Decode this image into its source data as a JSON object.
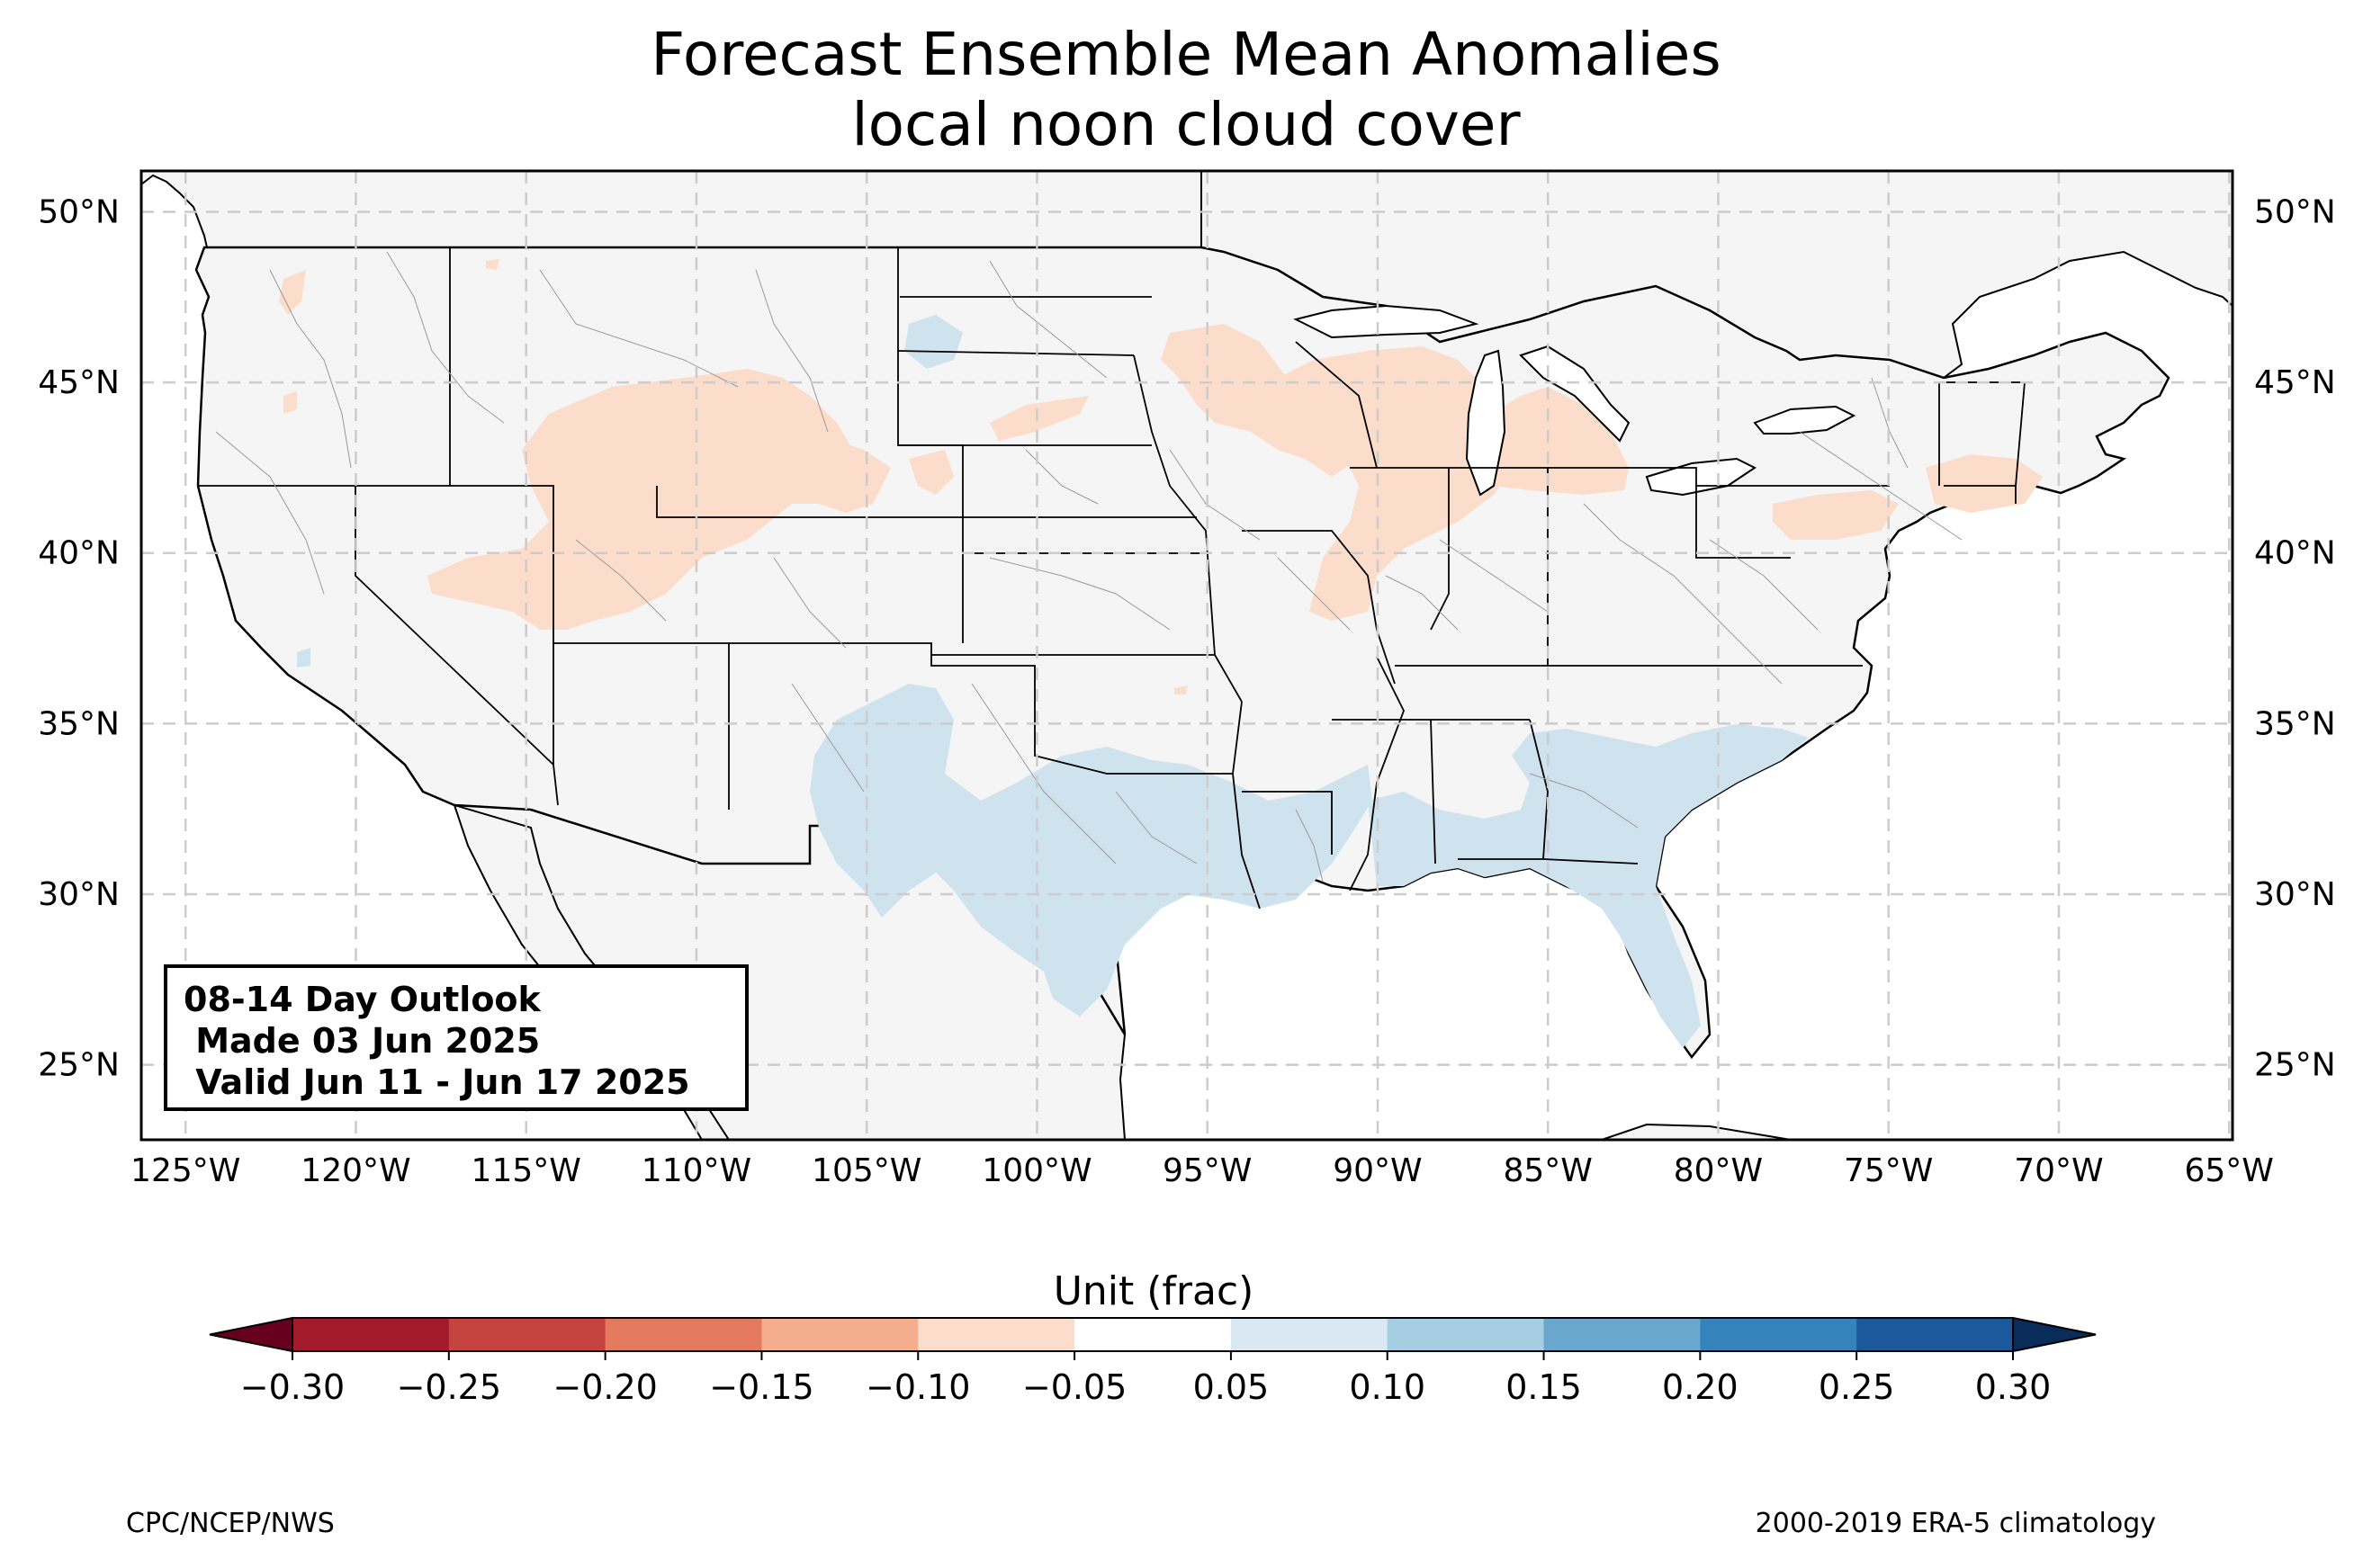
{
  "title": {
    "line1": "Forecast Ensemble Mean Anomalies",
    "line2": "local noon cloud cover"
  },
  "info_box": {
    "line1": "08-14 Day Outlook",
    "line2": " Made 03 Jun 2025",
    "line3": " Valid Jun 11 - Jun 17 2025"
  },
  "map": {
    "lon_range": [
      -126.3,
      -64.9
    ],
    "lat_range": [
      22.8,
      51.2
    ],
    "lat_ticks": [
      "50°N",
      "45°N",
      "40°N",
      "35°N",
      "30°N",
      "25°N"
    ],
    "lon_ticks": [
      "125°W",
      "120°W",
      "115°W",
      "110°W",
      "105°W",
      "100°W",
      "95°W",
      "90°W",
      "85°W",
      "80°W",
      "75°W",
      "70°W",
      "65°W"
    ],
    "land_color": "#f5f5f5",
    "positive_anomaly_color": "#cfe3ef",
    "negative_anomaly_color": "#fcdcca"
  },
  "colorbar": {
    "title": "Unit (frac)",
    "tick_labels": [
      "−0.30",
      "−0.25",
      "−0.20",
      "−0.15",
      "−0.10",
      "−0.05",
      "0.05",
      "0.10",
      "0.15",
      "0.20",
      "0.25",
      "0.30"
    ],
    "colors": [
      "#a31b2b",
      "#c6443f",
      "#e3795f",
      "#f4ae8d",
      "#fcdcca",
      "#ffffff",
      "#d9e8f2",
      "#a6cee3",
      "#69a7cf",
      "#3683bb",
      "#1b589c"
    ],
    "under_color": "#67001f",
    "over_color": "#0a2c5b"
  },
  "footer": {
    "left": "CPC/NCEP/NWS",
    "right": "2000-2019 ERA-5 climatology"
  }
}
